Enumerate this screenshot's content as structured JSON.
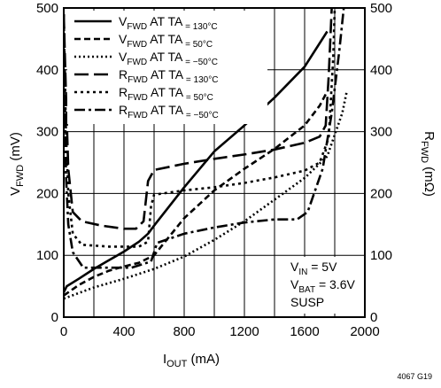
{
  "chart_data": {
    "type": "line",
    "xlabel": {
      "main": "I",
      "sub": "OUT",
      "unit": " (mA)"
    },
    "ylabel_left": {
      "main": "V",
      "sub": "FWD",
      "unit": " (mV)"
    },
    "ylabel_right": {
      "main": "R",
      "sub": "FWD",
      "unit": " (mΩ)"
    },
    "xlim": [
      0,
      2000
    ],
    "ylim": [
      0,
      500
    ],
    "x_ticks": [
      "0",
      "400",
      "800",
      "1200",
      "1600",
      "2000"
    ],
    "y_ticks_left": [
      "0",
      "100",
      "200",
      "300",
      "400",
      "500"
    ],
    "y_ticks_right": [
      "0",
      "100",
      "200",
      "300",
      "400",
      "500"
    ],
    "grid": true,
    "legend_position": "top-left",
    "conditions": [
      "V",
      "IN",
      " = 5V",
      "V",
      "BAT",
      " = 3.6V",
      "SUSP"
    ],
    "figure_code": "4067 G19",
    "series": [
      {
        "legend": [
          "V",
          "FWD",
          " AT T",
          "A",
          " = 130°C"
        ],
        "style": "solid",
        "points": [
          [
            0,
            40
          ],
          [
            20,
            50
          ],
          [
            100,
            62
          ],
          [
            200,
            78
          ],
          [
            300,
            92
          ],
          [
            400,
            106
          ],
          [
            500,
            122
          ],
          [
            560,
            135
          ],
          [
            600,
            148
          ],
          [
            800,
            210
          ],
          [
            1000,
            268
          ],
          [
            1200,
            310
          ],
          [
            1400,
            355
          ],
          [
            1600,
            405
          ],
          [
            1750,
            462
          ]
        ]
      },
      {
        "legend": [
          "V",
          "FWD",
          " AT T",
          "A",
          " = 50°C"
        ],
        "style": "dash-short",
        "points": [
          [
            0,
            35
          ],
          [
            100,
            52
          ],
          [
            200,
            65
          ],
          [
            300,
            75
          ],
          [
            400,
            82
          ],
          [
            500,
            88
          ],
          [
            600,
            100
          ],
          [
            800,
            160
          ],
          [
            1000,
            205
          ],
          [
            1200,
            240
          ],
          [
            1400,
            272
          ],
          [
            1600,
            310
          ],
          [
            1700,
            342
          ],
          [
            1750,
            365
          ]
        ]
      },
      {
        "legend": [
          "V",
          "FWD",
          " AT T",
          "A",
          " = −50°C"
        ],
        "style": "dotted",
        "points": [
          [
            0,
            30
          ],
          [
            200,
            48
          ],
          [
            400,
            62
          ],
          [
            600,
            78
          ],
          [
            800,
            98
          ],
          [
            1000,
            125
          ],
          [
            1200,
            155
          ],
          [
            1400,
            190
          ],
          [
            1600,
            225
          ],
          [
            1750,
            260
          ],
          [
            1850,
            330
          ],
          [
            1880,
            365
          ]
        ]
      },
      {
        "legend": [
          "R",
          "FWD",
          " AT T",
          "A",
          " = 130°C"
        ],
        "style": "dash-long",
        "points": [
          [
            0,
            490
          ],
          [
            15,
            360
          ],
          [
            30,
            240
          ],
          [
            60,
            170
          ],
          [
            120,
            155
          ],
          [
            250,
            148
          ],
          [
            400,
            143
          ],
          [
            480,
            143
          ],
          [
            530,
            155
          ],
          [
            560,
            220
          ],
          [
            600,
            238
          ],
          [
            800,
            248
          ],
          [
            1000,
            256
          ],
          [
            1200,
            263
          ],
          [
            1400,
            271
          ],
          [
            1600,
            282
          ],
          [
            1700,
            292
          ],
          [
            1740,
            310
          ],
          [
            1760,
            390
          ],
          [
            1780,
            500
          ]
        ]
      },
      {
        "legend": [
          "R",
          "FWD",
          " AT T",
          "A",
          " = 50°C"
        ],
        "style": "dash-dot-short",
        "points": [
          [
            0,
            490
          ],
          [
            15,
            300
          ],
          [
            30,
            200
          ],
          [
            60,
            135
          ],
          [
            120,
            117
          ],
          [
            300,
            114
          ],
          [
            500,
            114
          ],
          [
            560,
            122
          ],
          [
            580,
            180
          ],
          [
            600,
            198
          ],
          [
            800,
            205
          ],
          [
            1000,
            210
          ],
          [
            1200,
            217
          ],
          [
            1400,
            226
          ],
          [
            1600,
            237
          ],
          [
            1700,
            250
          ],
          [
            1760,
            290
          ],
          [
            1790,
            420
          ],
          [
            1800,
            500
          ]
        ]
      },
      {
        "legend": [
          "R",
          "FWD",
          " AT T",
          "A",
          " = −50°C"
        ],
        "style": "dash-dot",
        "points": [
          [
            0,
            490
          ],
          [
            15,
            230
          ],
          [
            30,
            150
          ],
          [
            60,
            105
          ],
          [
            130,
            80
          ],
          [
            300,
            80
          ],
          [
            450,
            80
          ],
          [
            580,
            90
          ],
          [
            620,
            120
          ],
          [
            800,
            135
          ],
          [
            1000,
            145
          ],
          [
            1200,
            153
          ],
          [
            1400,
            158
          ],
          [
            1550,
            158
          ],
          [
            1620,
            170
          ],
          [
            1720,
            240
          ],
          [
            1780,
            330
          ],
          [
            1830,
            430
          ],
          [
            1860,
            500
          ]
        ]
      }
    ]
  }
}
